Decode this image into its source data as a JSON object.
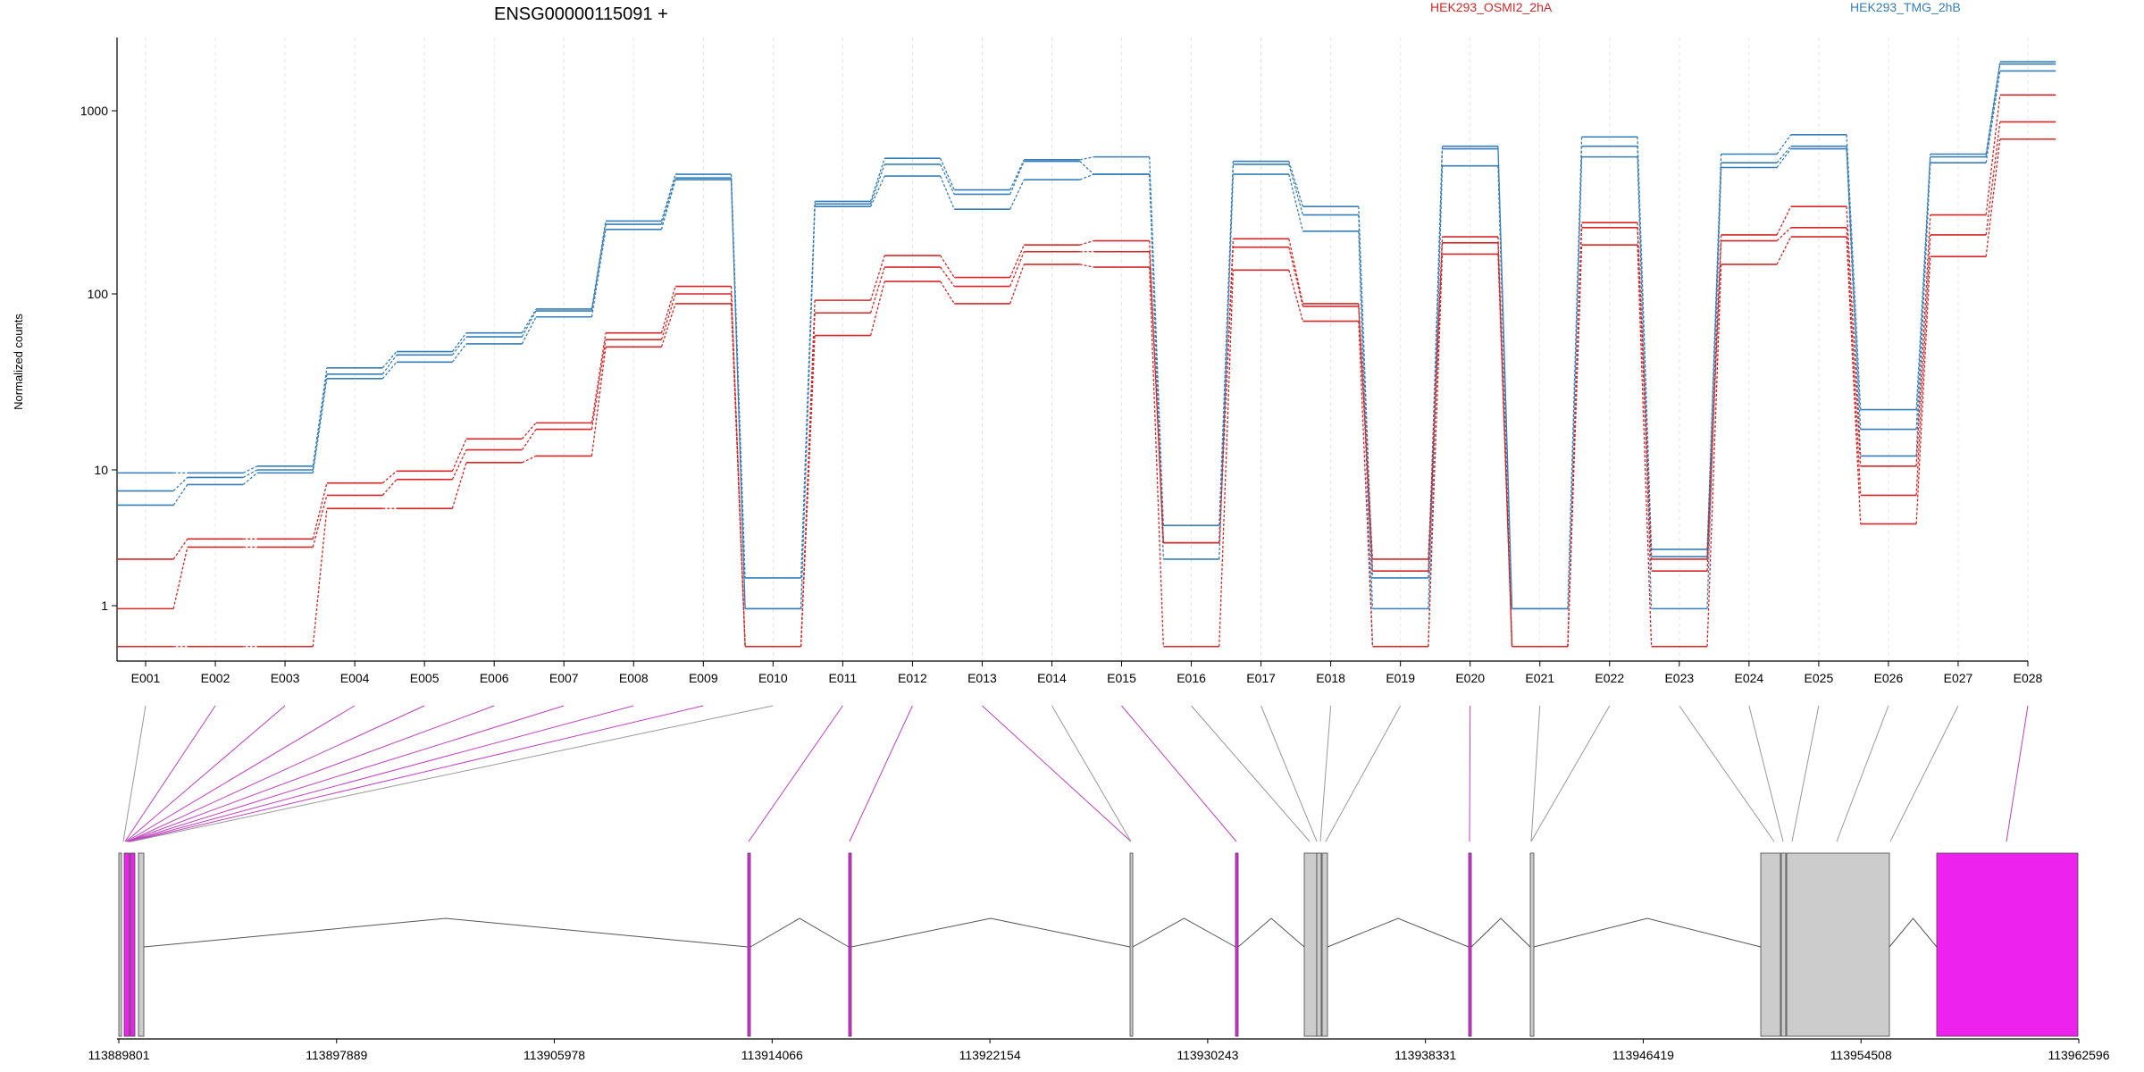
{
  "chart_data": {
    "type": "line",
    "title": "ENSG00000115091 +",
    "ylabel": "Normalized counts",
    "yscale": "log",
    "ylim": [
      0.5,
      2500
    ],
    "yticks": [
      "1",
      "10",
      "100",
      "1000"
    ],
    "categories": [
      "E001",
      "E002",
      "E003",
      "E004",
      "E005",
      "E006",
      "E007",
      "E008",
      "E009",
      "E010",
      "E011",
      "E012",
      "E013",
      "E014",
      "E015",
      "E016",
      "E017",
      "E018",
      "E019",
      "E020",
      "E021",
      "E022",
      "E023",
      "E024",
      "E025",
      "E026",
      "E027",
      "E028"
    ],
    "groups": [
      {
        "name": "HEK293_OSMI2_2hA",
        "color": "#d62728"
      },
      {
        "name": "HEK293_TMG_2hB",
        "color": "#377eb8"
      }
    ],
    "series": [
      {
        "group": "HEK293_TMG_2hB",
        "values": [
          9.5,
          9.5,
          10.5,
          38,
          47,
          60,
          82,
          250,
          450,
          1.6,
          320,
          550,
          370,
          540,
          560,
          3.9,
          530,
          300,
          1.6,
          640,
          0.95,
          720,
          2.6,
          580,
          740,
          22,
          580,
          1850
        ]
      },
      {
        "group": "HEK293_TMG_2hB",
        "values": [
          7.0,
          8.8,
          10.0,
          35,
          45,
          57,
          80,
          240,
          430,
          0.95,
          310,
          510,
          350,
          530,
          450,
          2.9,
          510,
          270,
          0.95,
          620,
          0.95,
          640,
          2.3,
          520,
          640,
          17,
          560,
          1800
        ]
      },
      {
        "group": "HEK293_TMG_2hB",
        "values": [
          5.5,
          7.8,
          9.5,
          33,
          41,
          52,
          74,
          225,
          420,
          0.95,
          300,
          440,
          290,
          420,
          450,
          2.2,
          450,
          220,
          0.5,
          500,
          0.5,
          560,
          0.95,
          490,
          620,
          12,
          520,
          1650
        ]
      },
      {
        "group": "HEK293_OSMI2_2hA",
        "values": [
          2.2,
          3.1,
          3.1,
          8.0,
          9.8,
          15,
          18.5,
          60,
          110,
          0.5,
          92,
          162,
          123,
          185,
          195,
          2.9,
          200,
          88,
          2.2,
          205,
          0.5,
          245,
          2.2,
          210,
          300,
          10.5,
          270,
          1220
        ]
      },
      {
        "group": "HEK293_OSMI2_2hA",
        "values": [
          0.95,
          2.7,
          2.7,
          6.5,
          8.5,
          13,
          17,
          55,
          100,
          0.5,
          78,
          140,
          110,
          170,
          170,
          2.9,
          180,
          85,
          1.8,
          190,
          0.5,
          230,
          1.8,
          195,
          230,
          6.5,
          210,
          870
        ]
      },
      {
        "group": "HEK293_OSMI2_2hA",
        "values": [
          0.5,
          0.5,
          0.5,
          5.2,
          5.2,
          11,
          12,
          50,
          88,
          0.5,
          58,
          117,
          88,
          145,
          140,
          0.5,
          135,
          70,
          0.5,
          165,
          0.5,
          185,
          0.5,
          145,
          205,
          4.0,
          160,
          700
        ]
      }
    ],
    "genome_axis": {
      "ticks": [
        "113889801",
        "113897889",
        "113905978",
        "113914066",
        "113922154",
        "113930243",
        "113938331",
        "113946419",
        "113954508",
        "113962596"
      ]
    },
    "exon_model_colors": {
      "highlight": "#ee22ee",
      "normal": "#cccccc",
      "line": "#999999"
    }
  }
}
